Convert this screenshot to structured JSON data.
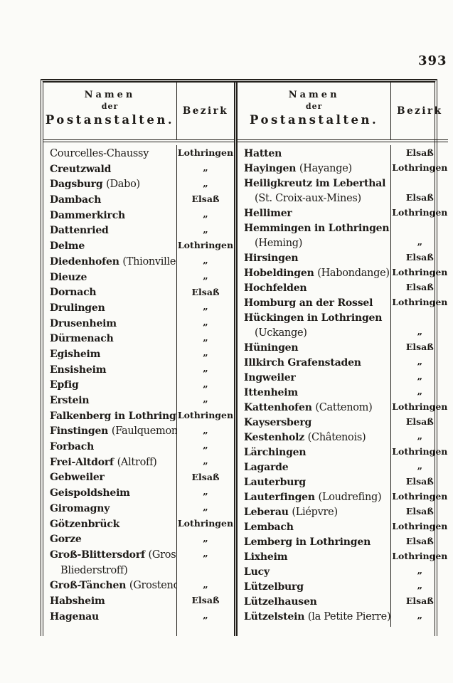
{
  "page_number": "393",
  "table": {
    "headers": {
      "namen": [
        "Namen",
        "der",
        "Postanstalten."
      ],
      "bezirk": "Bezirk"
    },
    "ditto_mark": "„",
    "bezirke": [
      "Elsaß",
      "Lothringen"
    ],
    "left_rows": [
      {
        "name": [
          [
            "Courcelles-Chaussy",
            "a"
          ]
        ],
        "bezirk": "Lothringen"
      },
      {
        "name": [
          [
            "Creutzwald",
            "f"
          ]
        ],
        "bezirk": "„"
      },
      {
        "name": [
          [
            "Dagsburg ",
            "f"
          ],
          [
            "(Dabo)",
            "a"
          ]
        ],
        "bezirk": "„"
      },
      {
        "name": [
          [
            "Dambach",
            "f"
          ]
        ],
        "bezirk": "Elsaß"
      },
      {
        "name": [
          [
            "Dammerkirch",
            "f"
          ]
        ],
        "bezirk": "„"
      },
      {
        "name": [
          [
            "Dattenried",
            "f"
          ]
        ],
        "bezirk": "„"
      },
      {
        "name": [
          [
            "Delme",
            "f"
          ]
        ],
        "bezirk": "Lothringen"
      },
      {
        "name": [
          [
            "Diedenhofen ",
            "f"
          ],
          [
            "(Thionville)",
            "a"
          ]
        ],
        "bezirk": "„"
      },
      {
        "name": [
          [
            "Dieuze",
            "f"
          ]
        ],
        "bezirk": "„"
      },
      {
        "name": [
          [
            "Dornach",
            "f"
          ]
        ],
        "bezirk": "Elsaß"
      },
      {
        "name": [
          [
            "Drulingen",
            "f"
          ]
        ],
        "bezirk": "„"
      },
      {
        "name": [
          [
            "Drusenheim",
            "f"
          ]
        ],
        "bezirk": "„"
      },
      {
        "name": [
          [
            "Dürmenach",
            "f"
          ]
        ],
        "bezirk": "„"
      },
      {
        "name": [
          [
            "Egisheim",
            "f"
          ]
        ],
        "bezirk": "„"
      },
      {
        "name": [
          [
            "Ensisheim",
            "f"
          ]
        ],
        "bezirk": "„"
      },
      {
        "name": [
          [
            "Epfig",
            "f"
          ]
        ],
        "bezirk": "„"
      },
      {
        "name": [
          [
            "Erstein",
            "f"
          ]
        ],
        "bezirk": "„"
      },
      {
        "name": [
          [
            "Falkenberg in Lothringen",
            "f"
          ]
        ],
        "bezirk": "Lothringen"
      },
      {
        "name": [
          [
            "Finstingen ",
            "f"
          ],
          [
            "(Faulquemont)",
            "a"
          ]
        ],
        "bezirk": "„"
      },
      {
        "name": [
          [
            "Forbach",
            "f"
          ]
        ],
        "bezirk": "„"
      },
      {
        "name": [
          [
            "Frei-Altdorf ",
            "f"
          ],
          [
            "(Altroff)",
            "a"
          ]
        ],
        "bezirk": "„"
      },
      {
        "name": [
          [
            "Gebweiler",
            "f"
          ]
        ],
        "bezirk": "Elsaß"
      },
      {
        "name": [
          [
            "Geispoldsheim",
            "f"
          ]
        ],
        "bezirk": "„"
      },
      {
        "name": [
          [
            "Giromagny",
            "f"
          ]
        ],
        "bezirk": "„"
      },
      {
        "name": [
          [
            "Götzenbrück",
            "f"
          ]
        ],
        "bezirk": "Lothringen"
      },
      {
        "name": [
          [
            "Gorze",
            "f"
          ]
        ],
        "bezirk": "„"
      },
      {
        "name": [
          [
            "Groß-Blittersdorf ",
            "f"
          ],
          [
            "(Gros-",
            "a"
          ]
        ],
        "name2": [
          [
            "Bliederstroff)",
            "a"
          ]
        ],
        "bezirk": "„",
        "bezirk_align": "top"
      },
      {
        "name": [
          [
            "Groß-Tänchen ",
            "f"
          ],
          [
            "(Grostenquin)",
            "a"
          ]
        ],
        "bezirk": "„"
      },
      {
        "name": [
          [
            "Habsheim",
            "f"
          ]
        ],
        "bezirk": "Elsaß"
      },
      {
        "name": [
          [
            "Hagenau",
            "f"
          ]
        ],
        "bezirk": "„"
      }
    ],
    "right_rows": [
      {
        "name": [
          [
            "Hatten",
            "f"
          ]
        ],
        "bezirk": "Elsaß"
      },
      {
        "name": [
          [
            "Hayingen ",
            "f"
          ],
          [
            "(Hayange)",
            "a"
          ]
        ],
        "bezirk": "Lothringen"
      },
      {
        "name": [
          [
            "Heiligkreutz im Leberthal",
            "f"
          ]
        ],
        "name2": [
          [
            "(St. Croix-aux-Mines)",
            "a"
          ]
        ],
        "bezirk": "Elsaß",
        "bezirk_align": "bottom"
      },
      {
        "name": [
          [
            "Hellimer",
            "f"
          ]
        ],
        "bezirk": "Lothringen"
      },
      {
        "name": [
          [
            "Hemmingen in Lothringen",
            "f"
          ]
        ],
        "name2": [
          [
            "(Heming)",
            "a"
          ]
        ],
        "bezirk": "„",
        "bezirk_align": "bottom"
      },
      {
        "name": [
          [
            "Hirsingen",
            "f"
          ]
        ],
        "bezirk": "Elsaß"
      },
      {
        "name": [
          [
            "Hobeldingen ",
            "f"
          ],
          [
            "(Habondange)",
            "a"
          ]
        ],
        "bezirk": "Lothringen"
      },
      {
        "name": [
          [
            "Hochfelden",
            "f"
          ]
        ],
        "bezirk": "Elsaß"
      },
      {
        "name": [
          [
            "Homburg an der Rossel",
            "f"
          ]
        ],
        "bezirk": "Lothringen"
      },
      {
        "name": [
          [
            "Hückingen in Lothringen",
            "f"
          ]
        ],
        "name2": [
          [
            "(Uckange)",
            "a"
          ]
        ],
        "bezirk": "„",
        "bezirk_align": "bottom"
      },
      {
        "name": [
          [
            "Hüningen",
            "f"
          ]
        ],
        "bezirk": "Elsaß"
      },
      {
        "name": [
          [
            "Illkirch Grafenstaden",
            "f"
          ]
        ],
        "bezirk": "„"
      },
      {
        "name": [
          [
            "Ingweiler",
            "f"
          ]
        ],
        "bezirk": "„"
      },
      {
        "name": [
          [
            "Ittenheim",
            "f"
          ]
        ],
        "bezirk": "„"
      },
      {
        "name": [
          [
            "Kattenhofen ",
            "f"
          ],
          [
            "(Cattenom)",
            "a"
          ]
        ],
        "bezirk": "Lothringen"
      },
      {
        "name": [
          [
            "Kaysersberg",
            "f"
          ]
        ],
        "bezirk": "Elsaß"
      },
      {
        "name": [
          [
            "Kestenholz ",
            "f"
          ],
          [
            "(Châtenois)",
            "a"
          ]
        ],
        "bezirk": "„"
      },
      {
        "name": [
          [
            "Lärchingen",
            "f"
          ]
        ],
        "bezirk": "Lothringen"
      },
      {
        "name": [
          [
            "Lagarde",
            "f"
          ]
        ],
        "bezirk": "„"
      },
      {
        "name": [
          [
            "Lauterburg",
            "f"
          ]
        ],
        "bezirk": "Elsaß"
      },
      {
        "name": [
          [
            "Lauterfingen ",
            "f"
          ],
          [
            "(Loudrefing)",
            "a"
          ]
        ],
        "bezirk": "Lothringen"
      },
      {
        "name": [
          [
            "Leberau ",
            "f"
          ],
          [
            "(Liépvre)",
            "a"
          ]
        ],
        "bezirk": "Elsaß"
      },
      {
        "name": [
          [
            "Lembach",
            "f"
          ]
        ],
        "bezirk": "Lothringen"
      },
      {
        "name": [
          [
            "Lemberg in Lothringen",
            "f"
          ]
        ],
        "bezirk": "Elsaß"
      },
      {
        "name": [
          [
            "Lixheim",
            "f"
          ]
        ],
        "bezirk": "Lothringen"
      },
      {
        "name": [
          [
            "Lucy",
            "f"
          ]
        ],
        "bezirk": "„"
      },
      {
        "name": [
          [
            "Lützelburg",
            "f"
          ]
        ],
        "bezirk": "„"
      },
      {
        "name": [
          [
            "Lützelhausen",
            "f"
          ]
        ],
        "bezirk": "Elsaß"
      },
      {
        "name": [
          [
            "Lützelstein ",
            "f"
          ],
          [
            "(la Petite Pierre)",
            "a"
          ]
        ],
        "bezirk": "„"
      }
    ]
  },
  "colors": {
    "ink": "#1d1a17",
    "paper": "#fbfbf8"
  }
}
